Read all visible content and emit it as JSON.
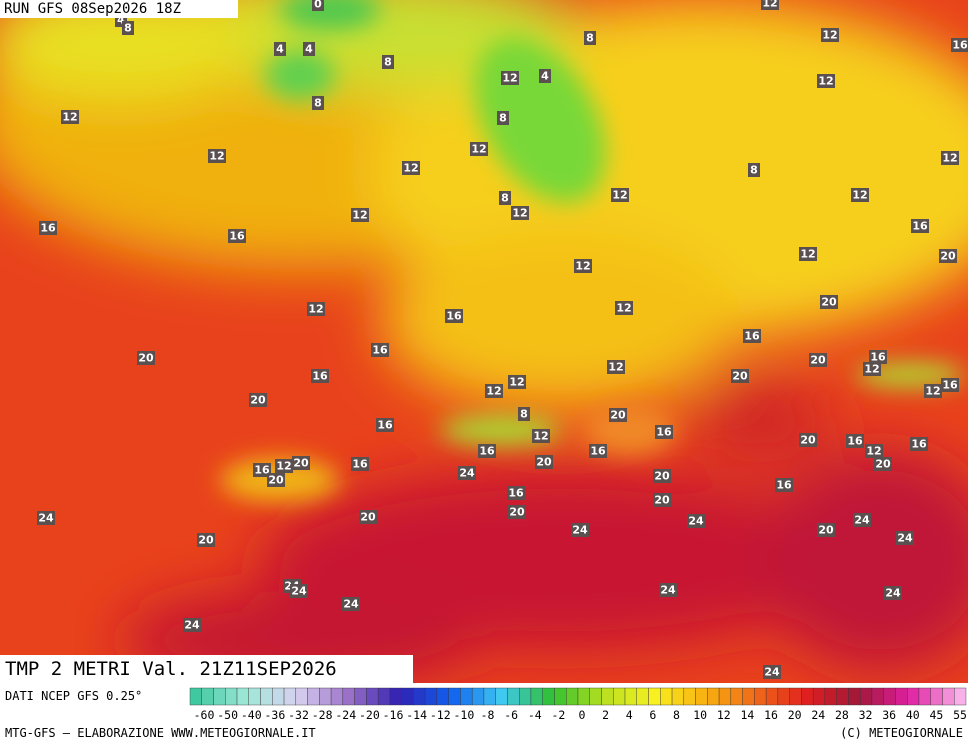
{
  "header": {
    "run": "RUN GFS 08Sep2026 18Z"
  },
  "map": {
    "title": "TMP 2 METRI Val. 21Z11SEP2026",
    "contour_labels": [
      0,
      4,
      8,
      4,
      4,
      8,
      8,
      12,
      12,
      16,
      8,
      4,
      12,
      12,
      12,
      8,
      12,
      12,
      12,
      8,
      12,
      12,
      12,
      12,
      8,
      12,
      12,
      16,
      16,
      16,
      12,
      20,
      16,
      12,
      16,
      12,
      20,
      16,
      16,
      20,
      20,
      16,
      12,
      12,
      16,
      20,
      12,
      12,
      16,
      12,
      20,
      8,
      16,
      20,
      16,
      12,
      20,
      16,
      12,
      16,
      16,
      16,
      16,
      12,
      20,
      20,
      20,
      24,
      20,
      20,
      16,
      16,
      20,
      20,
      24,
      24,
      24,
      24,
      20,
      24,
      20,
      20,
      24,
      24,
      24,
      24,
      24,
      24,
      24
    ]
  },
  "footer": {
    "source": "DATI NCEP GFS 0.25°",
    "colorbar_ticks": [
      -60,
      -50,
      -40,
      -36,
      -32,
      -28,
      -24,
      -20,
      -16,
      -14,
      -12,
      -10,
      -8,
      -6,
      -4,
      -2,
      0,
      2,
      4,
      6,
      8,
      10,
      12,
      14,
      16,
      20,
      24,
      28,
      32,
      36,
      40,
      45,
      55
    ],
    "credit": "MTG-GFS — ELABORAZIONE WWW.METEOGIORNALE.IT",
    "copyright": "(C) METEOGIORNALE"
  }
}
